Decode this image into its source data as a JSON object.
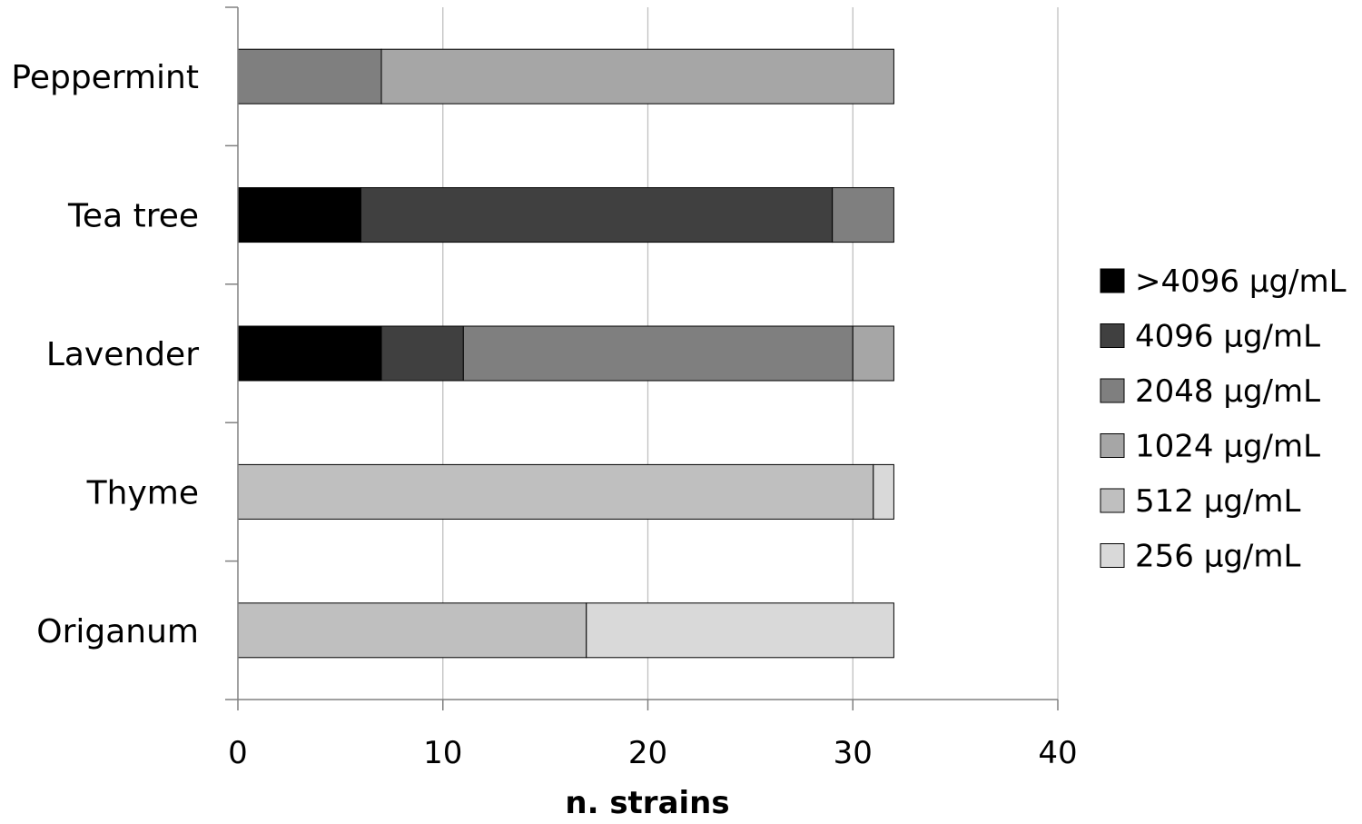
{
  "chart_data": {
    "type": "bar",
    "orientation": "horizontal",
    "stacked": true,
    "title": "",
    "xlabel": "n. strains",
    "ylabel": "",
    "xlim": [
      0,
      40
    ],
    "x_ticks": [
      "0",
      "10",
      "20",
      "30",
      "40"
    ],
    "grid": "vertical",
    "legend_position": "right",
    "categories": [
      "Peppermint",
      "Tea tree",
      "Lavender",
      "Thyme",
      "Origanum"
    ],
    "series": [
      {
        "name": ">4096 µg/mL",
        "color": "#000000",
        "values": [
          0,
          6,
          7,
          0,
          0
        ]
      },
      {
        "name": "4096 µg/mL",
        "color": "#404040",
        "values": [
          0,
          23,
          4,
          0,
          0
        ]
      },
      {
        "name": "2048 µg/mL",
        "color": "#7f7f7f",
        "values": [
          7,
          3,
          19,
          0,
          0
        ]
      },
      {
        "name": "1024 µg/mL",
        "color": "#a6a6a6",
        "values": [
          25,
          0,
          2,
          0,
          0
        ]
      },
      {
        "name": "512 µg/mL",
        "color": "#bfbfbf",
        "values": [
          0,
          0,
          0,
          31,
          17
        ]
      },
      {
        "name": "256 µg/mL",
        "color": "#d9d9d9",
        "values": [
          0,
          0,
          0,
          1,
          15
        ]
      }
    ]
  }
}
